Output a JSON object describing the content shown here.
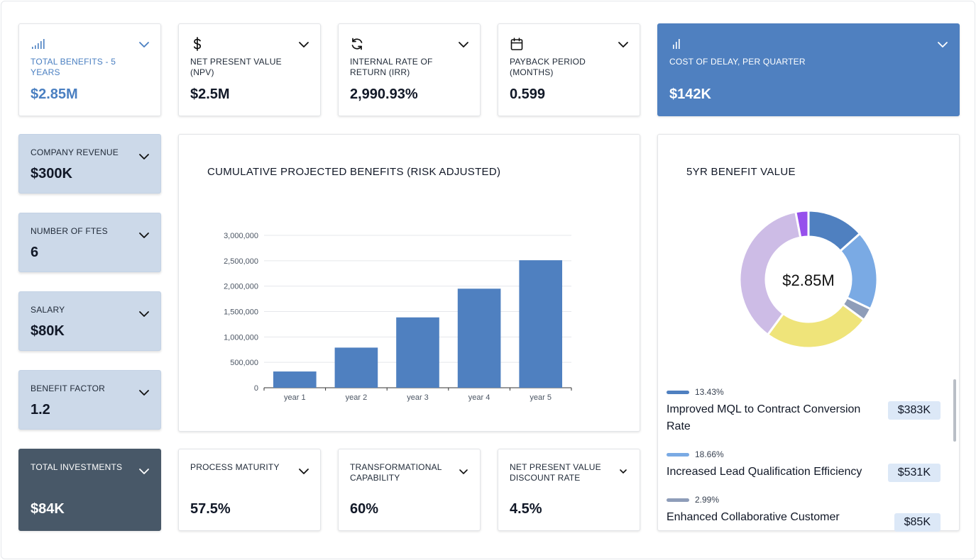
{
  "kpis": [
    {
      "label": "TOTAL BENEFITS - 5 YEARS",
      "value": "$2.85M",
      "icon": "signal-bars-icon"
    },
    {
      "label": "NET PRESENT VALUE (NPV)",
      "value": "$2.5M",
      "icon": "dollar-icon"
    },
    {
      "label": "INTERNAL RATE OF RETURN (IRR)",
      "value": "2,990.93%",
      "icon": "refresh-icon"
    },
    {
      "label": "PAYBACK PERIOD (MONTHS)",
      "value": "0.599",
      "icon": "calendar-icon"
    },
    {
      "label": "COST OF DELAY, PER QUARTER",
      "value": "$142K",
      "icon": "bar-chart-icon"
    }
  ],
  "inputs": [
    {
      "label": "COMPANY REVENUE",
      "value": "$300K"
    },
    {
      "label": "NUMBER OF FTES",
      "value": "6"
    },
    {
      "label": "SALARY",
      "value": "$80K"
    },
    {
      "label": "BENEFIT FACTOR",
      "value": "1.2"
    }
  ],
  "investments": {
    "label": "TOTAL INVESTMENTS",
    "value": "$84K"
  },
  "bottom": [
    {
      "label": "PROCESS MATURITY",
      "value": "57.5%"
    },
    {
      "label": "TRANSFORMATIONAL CAPABILITY",
      "value": "60%"
    },
    {
      "label": "NET PRESENT VALUE DISCOUNT RATE",
      "value": "4.5%"
    }
  ],
  "chart_data": {
    "type": "bar",
    "title": "CUMULATIVE PROJECTED BENEFITS (RISK ADJUSTED)",
    "categories": [
      "year 1",
      "year 2",
      "year 3",
      "year 4",
      "year 5"
    ],
    "values": [
      320000,
      790000,
      1385000,
      1950000,
      2510000
    ],
    "ylim": [
      0,
      3000000
    ],
    "yticks": [
      0,
      500000,
      1000000,
      1500000,
      2000000,
      2500000,
      3000000
    ],
    "ytick_labels": [
      "0",
      "500,000",
      "1,000,000",
      "1,500,000",
      "2,000,000",
      "2,500,000",
      "3,000,000"
    ],
    "xlabel": "",
    "ylabel": "",
    "grid": true,
    "color": "#4f80c0"
  },
  "donut": {
    "title": "5YR BENEFIT VALUE",
    "center_label": "$2.85M",
    "slices": [
      {
        "name": "Improved MQL to Contract Conversion Rate",
        "pct": 13.43,
        "color": "#4f80c0"
      },
      {
        "name": "Increased Lead Qualification Efficiency",
        "pct": 18.66,
        "color": "#7aaae4"
      },
      {
        "name": "Enhanced Collaborative Customer",
        "pct": 2.99,
        "color": "#8e9db9"
      },
      {
        "name": "",
        "pct": 25.0,
        "color": "#efe47a"
      },
      {
        "name": "",
        "pct": 36.92,
        "color": "#cdbce6"
      },
      {
        "name": "",
        "pct": 3.0,
        "color": "#9650ec"
      }
    ]
  },
  "legend": [
    {
      "pct": "13.43%",
      "name": "Improved MQL to Contract Conversion Rate",
      "amount": "$383K",
      "color": "#4f80c0"
    },
    {
      "pct": "18.66%",
      "name": "Increased Lead Qualification Efficiency",
      "amount": "$531K",
      "color": "#7aaae4"
    },
    {
      "pct": "2.99%",
      "name": "Enhanced Collaborative Customer",
      "amount": "$85K",
      "color": "#8e9db9"
    }
  ]
}
